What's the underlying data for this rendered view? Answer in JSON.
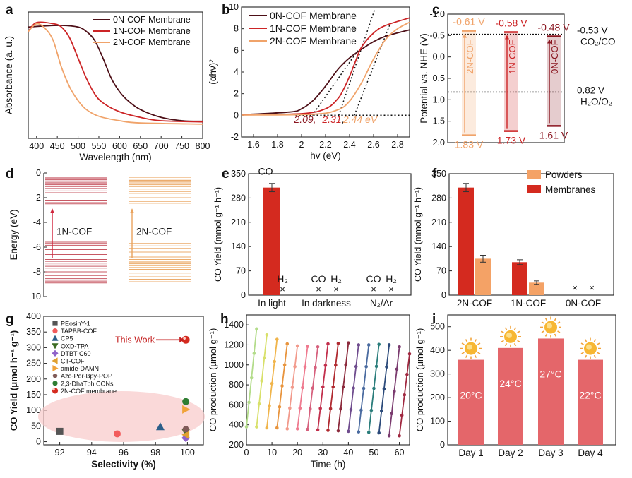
{
  "panel_labels": [
    "a",
    "b",
    "c",
    "d",
    "e",
    "f",
    "g",
    "h",
    "i"
  ],
  "colors": {
    "c0N": "#4d0f17",
    "c1N": "#cc2426",
    "c2N": "#f0a36a",
    "membrane": "#d42a1f",
    "powder": "#f4a266",
    "bar_i": "#e4666a",
    "sun": "#f7b733"
  },
  "chart_data": [
    {
      "id": "a",
      "type": "line",
      "xlabel": "Wavelength (nm)",
      "ylabel": "Absorbance (a. u.)",
      "xlim": [
        380,
        800
      ],
      "xticks": [
        400,
        450,
        500,
        550,
        600,
        650,
        700,
        750,
        800
      ],
      "legend": "top-right",
      "series": [
        {
          "name": "0N-COF Membrane",
          "color": "#4d0f17",
          "points": [
            [
              380,
              0.96
            ],
            [
              420,
              0.97
            ],
            [
              460,
              0.975
            ],
            [
              500,
              0.96
            ],
            [
              520,
              0.92
            ],
            [
              540,
              0.84
            ],
            [
              560,
              0.68
            ],
            [
              580,
              0.5
            ],
            [
              600,
              0.38
            ],
            [
              620,
              0.3
            ],
            [
              650,
              0.22
            ],
            [
              700,
              0.15
            ],
            [
              750,
              0.12
            ],
            [
              800,
              0.115
            ]
          ]
        },
        {
          "name": "1N-COF Membrane",
          "color": "#cc2426",
          "points": [
            [
              380,
              0.92
            ],
            [
              400,
              1.0
            ],
            [
              440,
              0.99
            ],
            [
              460,
              0.96
            ],
            [
              480,
              0.86
            ],
            [
              500,
              0.68
            ],
            [
              520,
              0.5
            ],
            [
              540,
              0.36
            ],
            [
              560,
              0.28
            ],
            [
              600,
              0.2
            ],
            [
              650,
              0.15
            ],
            [
              700,
              0.12
            ],
            [
              800,
              0.11
            ]
          ]
        },
        {
          "name": "2N-COF Membrane",
          "color": "#f0a36a",
          "points": [
            [
              380,
              0.92
            ],
            [
              400,
              0.99
            ],
            [
              420,
              0.95
            ],
            [
              440,
              0.84
            ],
            [
              460,
              0.6
            ],
            [
              480,
              0.42
            ],
            [
              500,
              0.3
            ],
            [
              520,
              0.22
            ],
            [
              550,
              0.16
            ],
            [
              600,
              0.12
            ],
            [
              650,
              0.1
            ],
            [
              800,
              0.09
            ]
          ]
        }
      ]
    },
    {
      "id": "b",
      "type": "line",
      "xlabel": "hv (eV)",
      "ylabel": "(αhν)²",
      "xlim": [
        1.5,
        2.9
      ],
      "ylim": [
        -2,
        10
      ],
      "xticks": [
        1.6,
        1.8,
        2.0,
        2.2,
        2.4,
        2.6,
        2.8
      ],
      "yticks": [
        -2,
        0,
        2,
        4,
        6,
        8,
        10
      ],
      "legend": "top-left",
      "annotation_parts": [
        "2.09,",
        "2.31",
        ",",
        "2.44 eV"
      ],
      "series": [
        {
          "name": "0N-COF Membrane",
          "color": "#4d0f17",
          "points": [
            [
              1.5,
              0.05
            ],
            [
              1.9,
              0.3
            ],
            [
              2.0,
              0.6
            ],
            [
              2.1,
              1.4
            ],
            [
              2.2,
              2.7
            ],
            [
              2.3,
              4.2
            ],
            [
              2.4,
              5.3
            ],
            [
              2.5,
              6.1
            ],
            [
              2.6,
              6.8
            ],
            [
              2.7,
              7.3
            ],
            [
              2.9,
              7.9
            ]
          ]
        },
        {
          "name": "1N-COF Membrane",
          "color": "#cc2426",
          "points": [
            [
              1.5,
              0.05
            ],
            [
              2.0,
              0.15
            ],
            [
              2.2,
              0.6
            ],
            [
              2.3,
              1.5
            ],
            [
              2.35,
              2.4
            ],
            [
              2.4,
              3.6
            ],
            [
              2.45,
              5.0
            ],
            [
              2.5,
              6.3
            ],
            [
              2.6,
              7.6
            ],
            [
              2.7,
              8.3
            ],
            [
              2.9,
              9.0
            ]
          ]
        },
        {
          "name": "2N-COF Membrane",
          "color": "#f0a36a",
          "points": [
            [
              1.5,
              0.02
            ],
            [
              2.1,
              0.1
            ],
            [
              2.3,
              0.5
            ],
            [
              2.4,
              1.3
            ],
            [
              2.5,
              3.0
            ],
            [
              2.6,
              5.2
            ],
            [
              2.7,
              7.0
            ],
            [
              2.8,
              8.0
            ],
            [
              2.9,
              8.6
            ]
          ]
        }
      ]
    },
    {
      "id": "c",
      "type": "bar",
      "ylabel": "Potential vs. NHE (V)",
      "ylim": [
        -1.0,
        2.0
      ],
      "yticks": [
        -1.0,
        -0.5,
        0.0,
        0.5,
        1.0,
        1.5,
        2.0
      ],
      "ref_lines": [
        {
          "value": -0.53,
          "label1": "-0.53 V",
          "label2": "CO₂/CO"
        },
        {
          "value": 0.82,
          "label1": "0.82 V",
          "label2": "H₂O/O₂"
        }
      ],
      "bands": [
        {
          "name": "2N-COF",
          "cb": -0.61,
          "vb": 1.83,
          "cb_label": "-0.61 V",
          "vb_label": "1.83 V",
          "color": "#f0a36a"
        },
        {
          "name": "1N-COF",
          "cb": -0.58,
          "vb": 1.73,
          "cb_label": "-0.58 V",
          "vb_label": "1.73 V",
          "color": "#cc2426"
        },
        {
          "name": "0N-COF",
          "cb": -0.48,
          "vb": 1.61,
          "cb_label": "-0.48 V",
          "vb_label": "1.61 V",
          "color": "#8a1620"
        }
      ]
    },
    {
      "id": "d",
      "type": "diagram",
      "ylabel": "Energy (eV)",
      "ylim": [
        -10,
        0
      ],
      "yticks": [
        0,
        -2,
        -4,
        -6,
        -8,
        -10
      ],
      "columns": [
        {
          "name": "1N-COF",
          "color": "#c24653",
          "levels": [
            -0.35,
            -0.45,
            -0.55,
            -0.65,
            -0.75,
            -0.85,
            -0.95,
            -1.1,
            -1.25,
            -1.45,
            -1.6,
            -2.2,
            -2.4,
            -2.5,
            -5.6,
            -5.7,
            -5.85,
            -6.2,
            -6.6,
            -7.0,
            -7.15,
            -7.3,
            -7.45,
            -7.55,
            -7.7,
            -8.0,
            -8.3,
            -8.55,
            -8.75,
            -8.9
          ]
        },
        {
          "name": "2N-COF",
          "color": "#e9a35d",
          "levels": [
            -0.35,
            -0.5,
            -0.6,
            -0.7,
            -0.8,
            -0.95,
            -1.1,
            -1.3,
            -1.5,
            -1.65,
            -2.0,
            -2.3,
            -2.45,
            -2.6,
            -5.7,
            -5.9,
            -6.1,
            -6.4,
            -6.8,
            -7.0,
            -7.15,
            -7.25,
            -7.35,
            -7.5,
            -7.65,
            -7.8,
            -8.1,
            -8.4,
            -8.6,
            -8.8
          ]
        }
      ]
    },
    {
      "id": "e",
      "type": "bar",
      "ylabel": "CO Yield (mmol g⁻¹ h⁻¹)",
      "ylim": [
        0,
        350
      ],
      "yticks": [
        0,
        70,
        140,
        210,
        280,
        350
      ],
      "categories": [
        "In light",
        "In darkness",
        "N₂/Ar"
      ],
      "values": [
        310,
        0,
        0
      ],
      "error": [
        12,
        0,
        0
      ],
      "annotations": {
        "co": "CO",
        "h2": "H₂",
        "x": "×"
      }
    },
    {
      "id": "f",
      "type": "bar",
      "ylabel": "CO Yield (mmol g⁻¹ h⁻¹)",
      "ylim": [
        0,
        350
      ],
      "yticks": [
        0,
        70,
        140,
        210,
        280,
        350
      ],
      "categories": [
        "2N-COF",
        "1N-COF",
        "0N-COF"
      ],
      "legend": "top-right",
      "series": [
        {
          "name": "Membranes",
          "color": "#d42a1f",
          "values": [
            310,
            95,
            0
          ],
          "error": [
            12,
            7,
            0
          ]
        },
        {
          "name": "Powders",
          "color": "#f4a266",
          "values": [
            105,
            36,
            0
          ],
          "error": [
            10,
            5,
            0
          ]
        }
      ],
      "zero_mark": "×"
    },
    {
      "id": "g",
      "type": "scatter",
      "xlabel": "Selectivity (%)",
      "ylabel": "CO Yield (μmol h⁻¹ g⁻¹)",
      "xlim": [
        91,
        101
      ],
      "ylim": [
        -10,
        400
      ],
      "xticks": [
        92,
        94,
        96,
        98,
        100
      ],
      "yticks": [
        0,
        50,
        100,
        150,
        200,
        250,
        300,
        350,
        400
      ],
      "highlight_label": "This Work",
      "series": [
        {
          "name": "PEosinY-1",
          "shape": "square",
          "color": "#555555",
          "x": 92.0,
          "y": 33
        },
        {
          "name": "TAPBB-COF",
          "shape": "circle",
          "color": "#f25b5b",
          "x": 95.6,
          "y": 25
        },
        {
          "name": "CP5",
          "shape": "triangle",
          "color": "#2c5f8a",
          "x": 98.3,
          "y": 48
        },
        {
          "name": "OXD-TPA",
          "shape": "tridown",
          "color": "#3a6b21",
          "x": 99.9,
          "y": 30
        },
        {
          "name": "DTBT-C60",
          "shape": "diamond",
          "color": "#8f63c9",
          "x": 99.9,
          "y": 12
        },
        {
          "name": "CT-COF",
          "shape": "trileft",
          "color": "#e0a030",
          "x": 99.9,
          "y": 22
        },
        {
          "name": "amide-DAMN",
          "shape": "triright",
          "color": "#f0a33a",
          "x": 99.9,
          "y": 103
        },
        {
          "name": "Azo-Por-Bpy-POP",
          "shape": "hexagon",
          "color": "#7f5a57",
          "x": 99.9,
          "y": 40
        },
        {
          "name": "2,3-DhaTph CONs",
          "shape": "circle",
          "color": "#2e7d32",
          "x": 99.9,
          "y": 128
        },
        {
          "name": "2N-COF membrane",
          "shape": "sphere",
          "color": "#d42a1f",
          "x": 99.9,
          "y": 325
        }
      ]
    },
    {
      "id": "h",
      "type": "line",
      "xlabel": "Time (h)",
      "ylabel": "CO production (μmol g⁻¹)",
      "xlim": [
        0,
        64
      ],
      "ylim": [
        200,
        1500
      ],
      "xticks": [
        0,
        10,
        20,
        30,
        40,
        50,
        60
      ],
      "yticks": [
        200,
        400,
        600,
        800,
        1000,
        1200,
        1400
      ],
      "cycle_hours": 4,
      "cycles": [
        {
          "start": 0,
          "base": 380,
          "peak": 1360,
          "color": "#b3dc8a"
        },
        {
          "start": 4,
          "base": 380,
          "peak": 1300,
          "color": "#d8e06a"
        },
        {
          "start": 8,
          "base": 370,
          "peak": 1255,
          "color": "#f0b44a"
        },
        {
          "start": 12,
          "base": 370,
          "peak": 1210,
          "color": "#e8943d"
        },
        {
          "start": 16,
          "base": 360,
          "peak": 1190,
          "color": "#f29a8c"
        },
        {
          "start": 20,
          "base": 360,
          "peak": 1185,
          "color": "#ef7a8f"
        },
        {
          "start": 24,
          "base": 355,
          "peak": 1180,
          "color": "#d6607d"
        },
        {
          "start": 28,
          "base": 350,
          "peak": 1210,
          "color": "#c22f4c"
        },
        {
          "start": 32,
          "base": 345,
          "peak": 1215,
          "color": "#b02a30"
        },
        {
          "start": 36,
          "base": 340,
          "peak": 1220,
          "color": "#8c2a3c"
        },
        {
          "start": 40,
          "base": 335,
          "peak": 1200,
          "color": "#6f4c8e"
        },
        {
          "start": 44,
          "base": 330,
          "peak": 1200,
          "color": "#4a6ba0"
        },
        {
          "start": 48,
          "base": 325,
          "peak": 1205,
          "color": "#2a7d7b"
        },
        {
          "start": 52,
          "base": 320,
          "peak": 1200,
          "color": "#2b4a7a"
        },
        {
          "start": 56,
          "base": 290,
          "peak": 1180,
          "color": "#7a3a6e"
        },
        {
          "start": 60,
          "base": 290,
          "peak": 1110,
          "color": "#a02840"
        }
      ]
    },
    {
      "id": "i",
      "type": "bar",
      "ylabel": "CO production (μmol g⁻¹)",
      "ylim": [
        0,
        550
      ],
      "yticks": [
        0,
        100,
        200,
        300,
        400,
        500
      ],
      "categories": [
        "Day 1",
        "Day 2",
        "Day 3",
        "Day 4"
      ],
      "values": [
        360,
        410,
        450,
        360
      ],
      "bar_labels": [
        "20°C",
        "24°C",
        "27°C",
        "22°C"
      ],
      "marker_icon": "sun-icon"
    }
  ]
}
